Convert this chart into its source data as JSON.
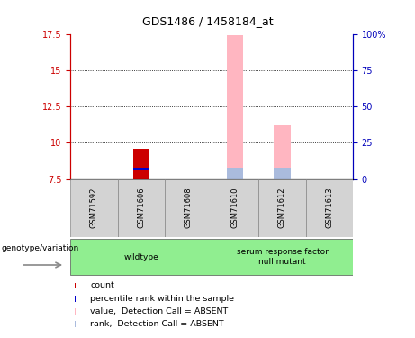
{
  "title": "GDS1486 / 1458184_at",
  "samples": [
    "GSM71592",
    "GSM71606",
    "GSM71608",
    "GSM71610",
    "GSM71612",
    "GSM71613"
  ],
  "ylim_left": [
    7.5,
    17.5
  ],
  "ylim_right": [
    0,
    100
  ],
  "yticks_left": [
    7.5,
    10.0,
    12.5,
    15.0,
    17.5
  ],
  "ytick_labels_left": [
    "7.5",
    "10",
    "12.5",
    "15",
    "17.5"
  ],
  "yticks_right": [
    0,
    25,
    50,
    75,
    100
  ],
  "ytick_labels_right": [
    "0",
    "25",
    "50",
    "75",
    "100%"
  ],
  "bar_data": {
    "GSM71606": {
      "count": [
        7.5,
        9.6,
        "#CC0000"
      ],
      "rank": [
        8.1,
        8.3,
        "#0000CC"
      ]
    },
    "GSM71610": {
      "value_absent": [
        7.5,
        17.4,
        "#FFB6C1"
      ],
      "rank_absent": [
        7.5,
        8.3,
        "#AABBDD"
      ]
    },
    "GSM71612": {
      "value_absent": [
        7.5,
        11.2,
        "#FFB6C1"
      ],
      "rank_absent": [
        7.5,
        8.3,
        "#AABBDD"
      ]
    }
  },
  "bar_width": 0.35,
  "absent_value_color": "#FFB6C1",
  "absent_rank_color": "#AABBDD",
  "left_axis_color": "#CC0000",
  "right_axis_color": "#0000BB",
  "sample_box_color": "#D3D3D3",
  "group_box_color": "#90EE90",
  "group_spans": [
    [
      0,
      2,
      "wildtype"
    ],
    [
      3,
      5,
      "serum response factor\nnull mutant"
    ]
  ],
  "genotype_label": "genotype/variation",
  "legend_items": [
    {
      "color": "#CC0000",
      "label": "count"
    },
    {
      "color": "#0000CC",
      "label": "percentile rank within the sample"
    },
    {
      "color": "#FFB6C1",
      "label": "value,  Detection Call = ABSENT"
    },
    {
      "color": "#AABBDD",
      "label": "rank,  Detection Call = ABSENT"
    }
  ]
}
